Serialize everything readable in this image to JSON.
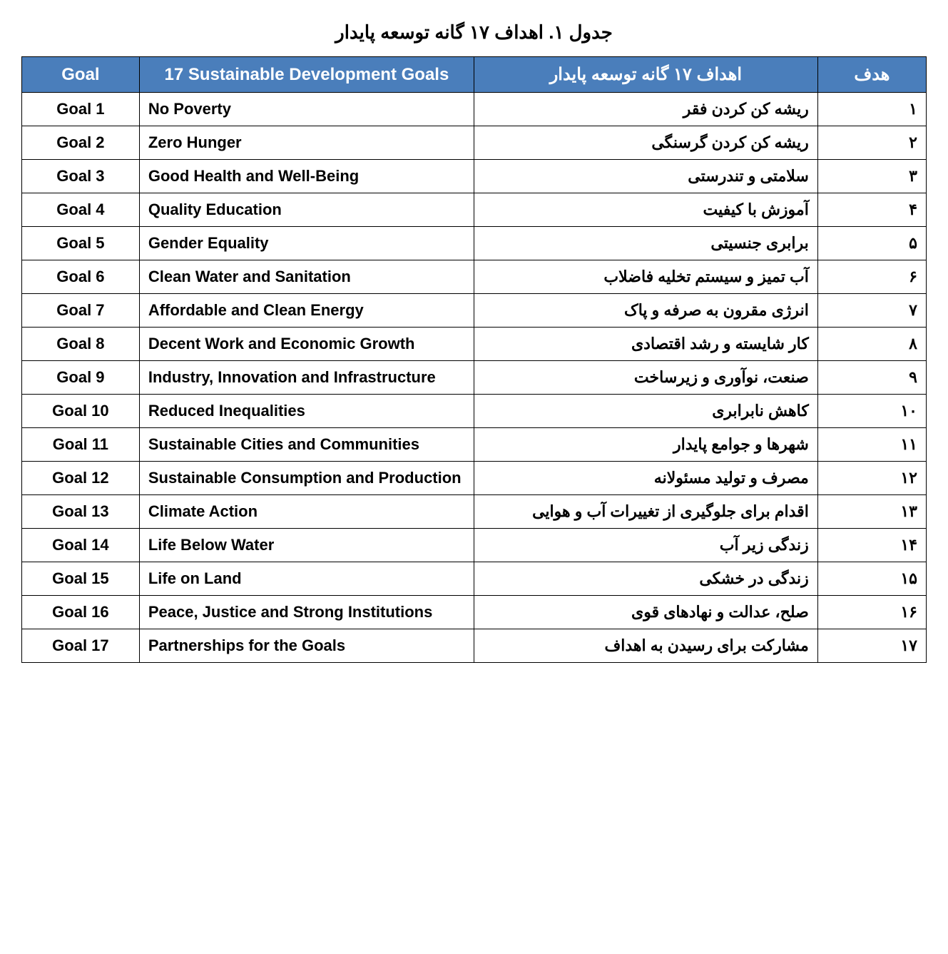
{
  "caption": "جدول ۱. اهداف ۱۷ گانه توسعه پایدار",
  "header": {
    "goal": "Goal",
    "en": "17 Sustainable Development Goals",
    "fa": "اهداف ۱۷ گانه توسعه پایدار",
    "hadaf": "هدف",
    "bg_color": "#4a7ebb",
    "fg_color": "#ffffff"
  },
  "border_color": "#000000",
  "body_text_color": "#000000",
  "background_color": "#ffffff",
  "font_family": "Arial / Tahoma",
  "header_fontsize_pt": 18,
  "body_fontsize_pt": 16,
  "rows": [
    {
      "goal": "Goal 1",
      "en": "No Poverty",
      "fa": "ریشه کن کردن فقر",
      "hadaf": "۱"
    },
    {
      "goal": "Goal 2",
      "en": "Zero Hunger",
      "fa": "ریشه کن کردن گرسنگی",
      "hadaf": "۲"
    },
    {
      "goal": "Goal 3",
      "en": "Good Health and Well-Being",
      "fa": "سلامتی و تندرستی",
      "hadaf": "۳"
    },
    {
      "goal": "Goal 4",
      "en": "Quality Education",
      "fa": "آموزش با کیفیت",
      "hadaf": "۴"
    },
    {
      "goal": "Goal 5",
      "en": "Gender Equality",
      "fa": "برابری جنسیتی",
      "hadaf": "۵"
    },
    {
      "goal": "Goal 6",
      "en": "Clean Water and Sanitation",
      "fa": "آب تمیز و سیستم تخلیه فاضلاب",
      "hadaf": "۶"
    },
    {
      "goal": "Goal 7",
      "en": "Affordable and Clean Energy",
      "fa": "انرژی مقرون به صرفه و پاک",
      "hadaf": "۷"
    },
    {
      "goal": "Goal 8",
      "en": "Decent Work and Economic Growth",
      "fa": "کار شایسته و رشد اقتصادی",
      "hadaf": "۸"
    },
    {
      "goal": "Goal 9",
      "en": "Industry, Innovation and Infrastructure",
      "fa": "صنعت، نوآوری و زیرساخت",
      "hadaf": "۹"
    },
    {
      "goal": "Goal 10",
      "en": "Reduced Inequalities",
      "fa": "کاهش نابرابری",
      "hadaf": "۱۰"
    },
    {
      "goal": "Goal 11",
      "en": "Sustainable Cities and Communities",
      "fa": "شهرها و جوامع پایدار",
      "hadaf": "۱۱"
    },
    {
      "goal": "Goal 12",
      "en": "Sustainable Consumption and Production",
      "fa": "مصرف و تولید مسئولانه",
      "hadaf": "۱۲"
    },
    {
      "goal": "Goal 13",
      "en": "Climate Action",
      "fa": "اقدام برای جلوگیری از تغییرات آب و هوایی",
      "hadaf": "۱۳"
    },
    {
      "goal": "Goal 14",
      "en": "Life Below Water",
      "fa": "زندگی زیر آب",
      "hadaf": "۱۴"
    },
    {
      "goal": "Goal 15",
      "en": "Life on Land",
      "fa": "زندگی در خشکی",
      "hadaf": "۱۵"
    },
    {
      "goal": "Goal 16",
      "en": "Peace, Justice and Strong Institutions",
      "fa": "صلح، عدالت و نهادهای قوی",
      "hadaf": "۱۶"
    },
    {
      "goal": "Goal 17",
      "en": "Partnerships for the Goals",
      "fa": "مشارکت برای رسیدن به اهداف",
      "hadaf": "۱۷"
    }
  ]
}
